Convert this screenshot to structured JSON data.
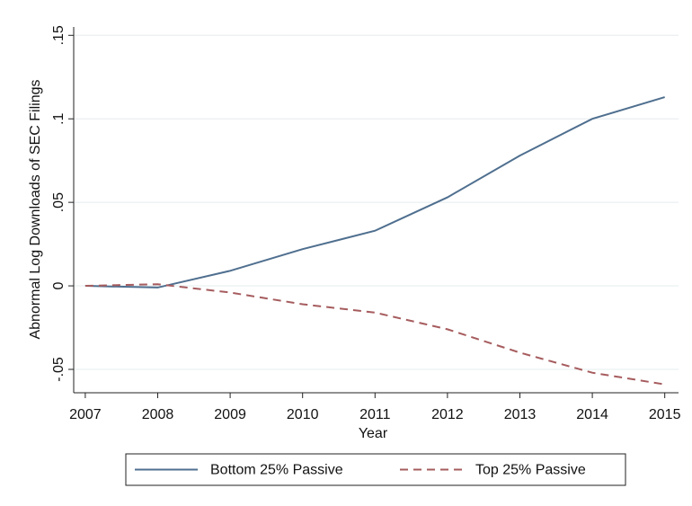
{
  "chart_data": {
    "type": "line",
    "x_label": "Year",
    "y_label": "Abnormal Log Downloads of SEC Filings",
    "x": [
      2007,
      2008,
      2009,
      2010,
      2011,
      2012,
      2013,
      2014,
      2015
    ],
    "series": [
      {
        "name": "Bottom 25% Passive",
        "color": "#4f6f8f",
        "line_style": "solid",
        "values": [
          0,
          -0.001,
          0.009,
          0.022,
          0.033,
          0.053,
          0.078,
          0.1,
          0.113
        ]
      },
      {
        "name": "Top 25% Passive",
        "color": "#a65c5e",
        "line_style": "dashed",
        "values": [
          0,
          0.001,
          -0.004,
          -0.011,
          -0.016,
          -0.026,
          -0.04,
          -0.052,
          -0.059
        ]
      }
    ],
    "xlim": [
      2006.84,
      2015.19
    ],
    "xticks": [
      2007,
      2008,
      2009,
      2010,
      2011,
      2012,
      2013,
      2014,
      2015
    ],
    "ylim": [
      -0.064,
      0.155
    ],
    "yticks": [
      {
        "value": -0.05,
        "label": "-.05"
      },
      0,
      {
        "value": 0.05,
        "label": ".05"
      },
      {
        "value": 0.1,
        "label": ".1"
      },
      {
        "value": 0.15,
        "label": ".15"
      }
    ],
    "grid": true,
    "legend": "bottom"
  }
}
